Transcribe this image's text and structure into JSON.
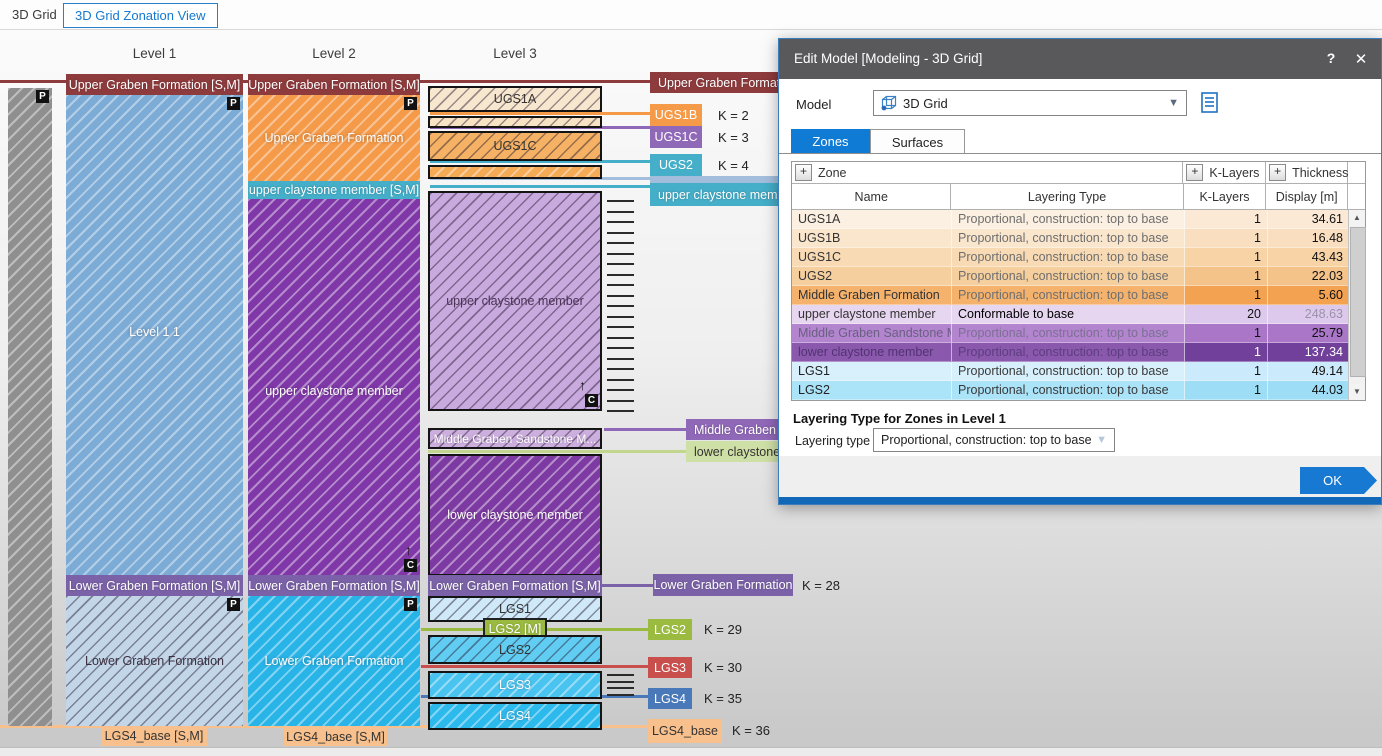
{
  "colors": {
    "accent_blue": "#0f7bd5",
    "maroon": "#8e3b3d",
    "orange": "#f59a48",
    "teal": "#45aec9",
    "purple": "#8038a8",
    "purple_mid": "#9068b8",
    "purple_band": "#7b62a8",
    "lavender": "#c9aade",
    "green": "#9aba40",
    "green_light": "#cfe0a6",
    "red": "#c94f4c",
    "steel": "#4a79ba",
    "steel_pale": "#a3bedd",
    "cyan": "#29b4e8",
    "peach": "#f8c08c",
    "blue_l1": "#7cabd6",
    "blue_pale": "#c2d6e8",
    "gray_col": "#8f8f8f",
    "dialog_title": "#59595b",
    "ok_blue": "#1779d1",
    "bottom_bar": "#1268b8"
  },
  "topbar": {
    "tab_3d_grid": "3D Grid",
    "tab_zonation": "3D Grid Zonation View"
  },
  "zonation": {
    "badges": {
      "p": "P",
      "c": "C"
    },
    "klayer_ticks": {
      "upper_count": 21,
      "lgs3_count": 4
    },
    "columns": {
      "level1": {
        "header": "Level 1",
        "top_band": "Upper Graben Formation [S,M]",
        "main_label": "Level 1 1",
        "lgf_band": "Lower Graben Formation [S,M]",
        "lower_label": "Lower Graben Formation",
        "base_label": "LGS4_base [S,M]"
      },
      "level2": {
        "header": "Level 2",
        "top_band": "Upper Graben Formation [S,M]",
        "main_label": "Upper Graben Formation",
        "ucm_band": "upper claystone member [S,M]",
        "ucm_label": "upper claystone member",
        "lgf_band": "Lower Graben Formation [S,M]",
        "lower_label": "Lower Graben Formation",
        "base_label": "LGS4_base [S,M]"
      },
      "level3": {
        "header": "Level 3",
        "ugs1a": "UGS1A",
        "ugs1c": "UGS1C",
        "ucm_label": "upper claystone member",
        "mgs_band": "Middle Graben Sandstone M...",
        "lcm_label": "lower claystone member",
        "lgf_band": "Lower Graben Formation [S,M]",
        "lgs1": "LGS1",
        "lgs2_band": "LGS2 [M]",
        "lgs2": "LGS2",
        "lgs3": "LGS3",
        "lgs4": "LGS4"
      }
    },
    "right": {
      "ugf": {
        "text": "Upper Graben Formation [S,M]"
      },
      "ugs1b": {
        "text": "UGS1B",
        "k": "K = 2"
      },
      "ugs1c": {
        "text": "UGS1C",
        "k": "K = 3"
      },
      "ugs2": {
        "text": "UGS2",
        "k": "K = 4"
      },
      "ucm": {
        "text": "upper claystone member"
      },
      "mgs": {
        "text": "Middle Graben Sandstone M..."
      },
      "lcm": {
        "text": "lower claystone member"
      },
      "lgf": {
        "text": "Lower Graben Formation",
        "k": "K = 28"
      },
      "lgs2": {
        "text": "LGS2",
        "k": "K = 29"
      },
      "lgs3": {
        "text": "LGS3",
        "k": "K = 30"
      },
      "lgs4": {
        "text": "LGS4",
        "k": "K = 35"
      },
      "lgs4_base": {
        "text": "LGS4_base",
        "k": "K = 36"
      }
    }
  },
  "dialog": {
    "title": "Edit Model [Modeling - 3D Grid]",
    "help_label": "?",
    "close_label": "✕",
    "model_label": "Model",
    "model_value": "3D Grid",
    "tabs": [
      {
        "label": "Zones",
        "active": true
      },
      {
        "label": "Surfaces",
        "active": false
      }
    ],
    "table": {
      "add_symbol": "+",
      "group_headers": [
        {
          "label": "Zone"
        },
        {
          "label": "K-Layers"
        },
        {
          "label": "Thickness"
        }
      ],
      "columns": [
        "Name",
        "Layering Type",
        "K-Layers",
        "Display [m]"
      ],
      "rows": [
        {
          "name": "UGS1A",
          "layering": "Proportional, construction: top to base",
          "klayers": "1",
          "display": "34.61",
          "bg": "#fcf0e2",
          "num_bg": "#fbe9d6",
          "name_fg": "#333",
          "layering_fg": "#6e6e6e",
          "num_fg": "#111"
        },
        {
          "name": "UGS1B",
          "layering": "Proportional, construction: top to base",
          "klayers": "1",
          "display": "16.48",
          "bg": "#fae6cc",
          "num_bg": "#f9dfc0",
          "name_fg": "#333",
          "layering_fg": "#6e6e6e",
          "num_fg": "#111"
        },
        {
          "name": "UGS1C",
          "layering": "Proportional, construction: top to base",
          "klayers": "1",
          "display": "43.43",
          "bg": "#f8dbb4",
          "num_bg": "#f7d3a6",
          "name_fg": "#333",
          "layering_fg": "#6e6e6e",
          "num_fg": "#111"
        },
        {
          "name": "UGS2",
          "layering": "Proportional, construction: top to base",
          "klayers": "1",
          "display": "22.03",
          "bg": "#f6cf9e",
          "num_bg": "#f4c38a",
          "name_fg": "#333",
          "layering_fg": "#6e6e6e",
          "num_fg": "#111"
        },
        {
          "name": "Middle Graben Formation",
          "layering": "Proportional, construction: top to base",
          "klayers": "1",
          "display": "5.60",
          "bg": "#f4b26d",
          "num_bg": "#f2a250",
          "name_fg": "#333",
          "layering_fg": "#6e6e6e",
          "num_fg": "#111"
        },
        {
          "name": "upper claystone member",
          "layering": "Conformable to base",
          "klayers": "20",
          "display": "248.63",
          "bg": "#e7d6f0",
          "num_bg": "#ddc9ec",
          "name_fg": "#333",
          "layering_fg": "#000",
          "num_fg": "#111",
          "display_fg": "#9b92a9"
        },
        {
          "name": "Middle Graben Sandstone M...",
          "layering": "Proportional, construction: top to base",
          "klayers": "1",
          "display": "25.79",
          "bg": "#b285ce",
          "num_bg": "#a976c8",
          "name_fg": "#6b5f82",
          "layering_fg": "#7d6f95",
          "num_fg": "#111"
        },
        {
          "name": "lower claystone member",
          "layering": "Proportional, construction: top to base",
          "klayers": "1",
          "display": "137.34",
          "bg": "#8a58ac",
          "num_bg": "#71409a",
          "name_fg": "#523272",
          "layering_fg": "#5d3d80",
          "num_fg": "#fff"
        },
        {
          "name": "LGS1",
          "layering": "Proportional, construction: top to base",
          "klayers": "1",
          "display": "49.14",
          "bg": "#d7f0fc",
          "num_bg": "#cbeafb",
          "name_fg": "#222",
          "layering_fg": "#3a3a3a",
          "num_fg": "#111"
        },
        {
          "name": "LGS2",
          "layering": "Proportional, construction: top to base",
          "klayers": "1",
          "display": "44.03",
          "bg": "#abe3f8",
          "num_bg": "#9dddf6",
          "name_fg": "#222",
          "layering_fg": "#3a3a3a",
          "num_fg": "#111"
        }
      ]
    },
    "section_title": "Layering Type for Zones in Level 1",
    "layering_label": "Layering type",
    "layering_value": "Proportional, construction: top to base",
    "ok_label": "OK"
  }
}
